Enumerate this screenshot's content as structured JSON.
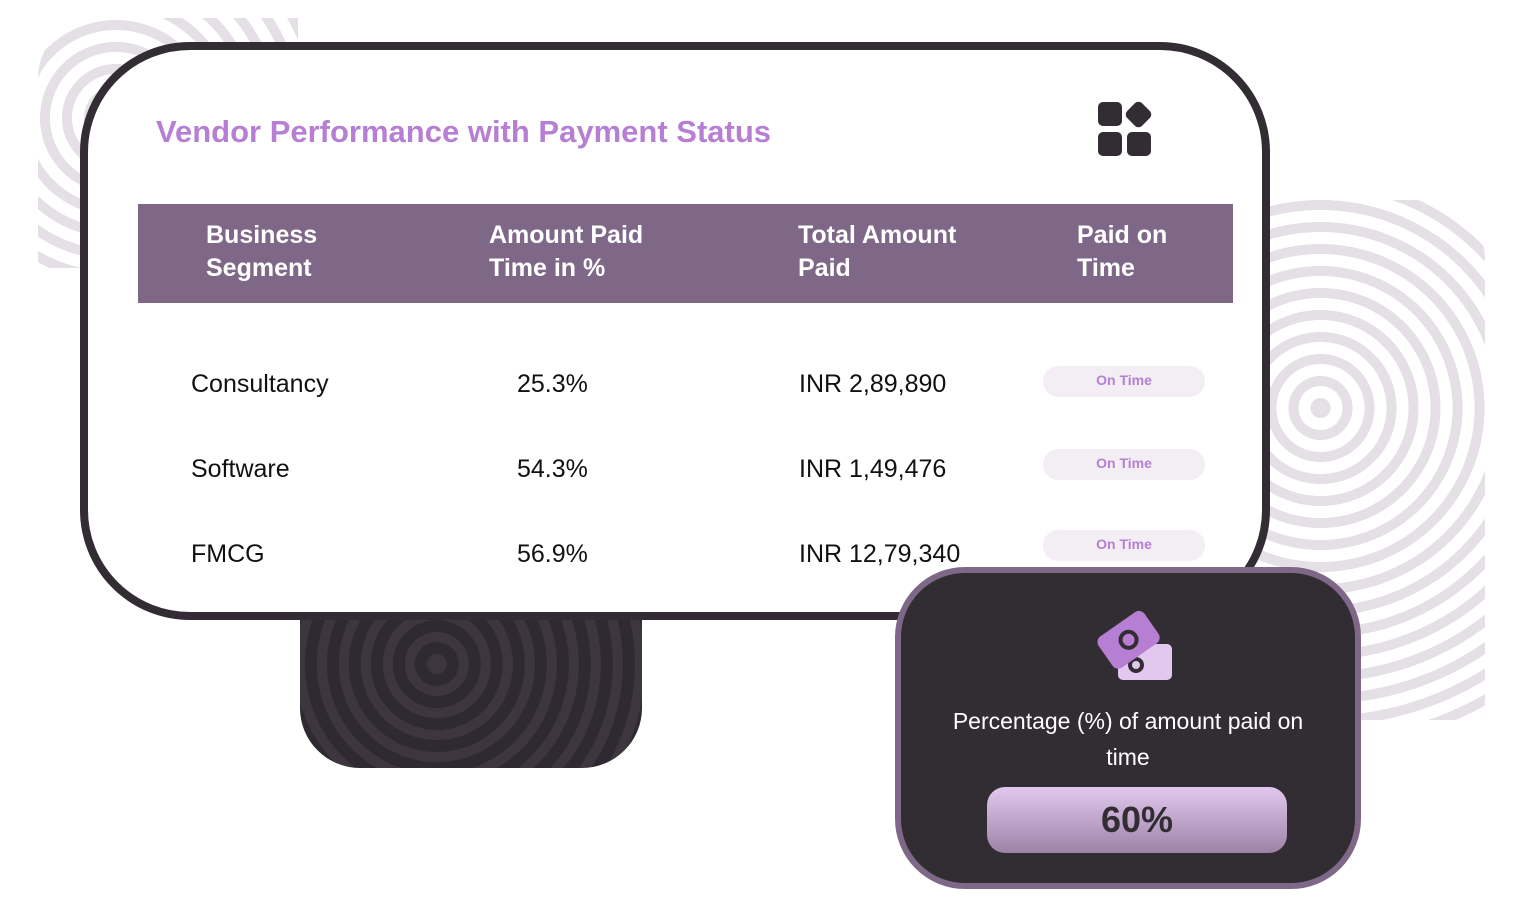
{
  "title": "Vendor Performance with Payment Status",
  "table": {
    "headers": [
      [
        "Business",
        "Segment"
      ],
      [
        "Amount Paid",
        "Time in %"
      ],
      [
        "Total Amount",
        "Paid"
      ],
      [
        "Paid on",
        "Time"
      ]
    ],
    "rows": [
      {
        "segment": "Consultancy",
        "percent": "25.3%",
        "total": "INR 2,89,890",
        "status": "On Time"
      },
      {
        "segment": "Software",
        "percent": "54.3%",
        "total": "INR 1,49,476",
        "status": "On Time"
      },
      {
        "segment": "FMCG",
        "percent": "56.9%",
        "total": "INR 12,79,340",
        "status": "On Time"
      }
    ]
  },
  "stat": {
    "label": "Percentage (%) of amount paid on time",
    "value": "60%",
    "icon": "money-icon"
  },
  "colors": {
    "accent": "#b67fd3",
    "header": "#7f6887",
    "dark": "#322d33"
  }
}
